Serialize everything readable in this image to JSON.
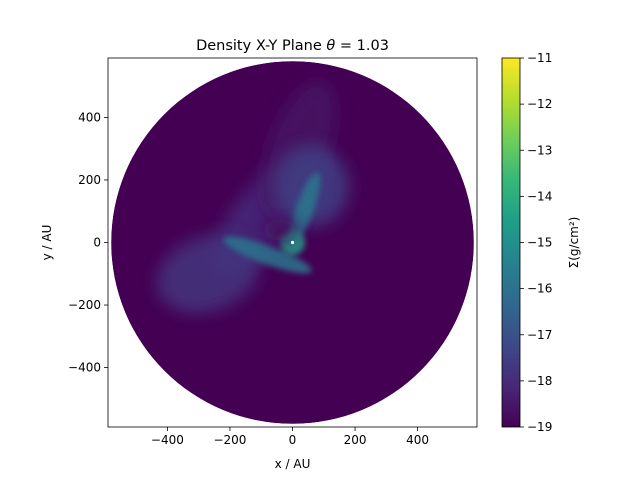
{
  "chart_data": {
    "type": "heatmap",
    "title": "Density X-Y Plane θ =  1.03",
    "title_prefix": "Density X-Y Plane ",
    "title_theta": "θ",
    "title_suffix": " =  1.03",
    "xlabel": "x / AU",
    "ylabel": "y / AU",
    "xlim": [
      -590,
      590
    ],
    "ylim": [
      -590,
      590
    ],
    "x_ticks": [
      -400,
      -200,
      0,
      200,
      400
    ],
    "x_tick_labels": [
      "−400",
      "−200",
      "0",
      "200",
      "400"
    ],
    "y_ticks": [
      400,
      200,
      0,
      -200,
      -400
    ],
    "y_tick_labels": [
      "400",
      "200",
      "0",
      "−200",
      "−400"
    ],
    "grid": false,
    "disk_radius_au": 580,
    "colormap": "viridis",
    "colorbar": {
      "label": "Σ(g/cm²)",
      "min": -19,
      "max": -11,
      "ticks": [
        -11,
        -12,
        -13,
        -14,
        -15,
        -16,
        -17,
        -18,
        -19
      ],
      "tick_labels": [
        "−11",
        "−12",
        "−13",
        "−14",
        "−15",
        "−16",
        "−17",
        "−18",
        "−19"
      ]
    },
    "background_value": -19,
    "features": [
      {
        "kind": "spiral-arm",
        "cx": -80,
        "cy": 100,
        "rx": 260,
        "ry": 95,
        "angle_deg": -50,
        "value": -18.0
      },
      {
        "kind": "outer-arm",
        "cx": 20,
        "cy": 300,
        "rx": 95,
        "ry": 230,
        "angle_deg": 20,
        "value": -18.6
      },
      {
        "kind": "lower-left-lobe",
        "cx": -270,
        "cy": -100,
        "rx": 170,
        "ry": 120,
        "angle_deg": -20,
        "value": -17.8
      },
      {
        "kind": "upper-right-lobe",
        "cx": 60,
        "cy": 180,
        "rx": 120,
        "ry": 130,
        "angle_deg": 0,
        "value": -17.5
      },
      {
        "kind": "inner-stream",
        "cx": 40,
        "cy": 110,
        "rx": 120,
        "ry": 28,
        "angle_deg": -70,
        "value": -15.8
      },
      {
        "kind": "inner-stream",
        "cx": -80,
        "cy": -40,
        "rx": 150,
        "ry": 30,
        "angle_deg": 20,
        "value": -15.9
      },
      {
        "kind": "core",
        "cx": 0,
        "cy": 0,
        "rx": 40,
        "ry": 40,
        "angle_deg": 0,
        "value": -14.5
      },
      {
        "kind": "cavity",
        "cx": -40,
        "cy": 40,
        "rx": 55,
        "ry": 35,
        "angle_deg": 0,
        "value": -18.8
      }
    ]
  }
}
